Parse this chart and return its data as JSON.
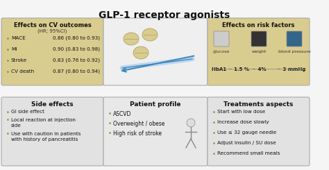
{
  "title": "GLP-1 receptor agonists",
  "title_fontsize": 10,
  "bg_color": "#f5f5f5",
  "bullet_color": "#6a9a2a",
  "panels": {
    "cv_outcomes": {
      "title": "Effects on CV outcomes",
      "subtitle": "(HR; 95%CI)",
      "rows": [
        [
          "MACE",
          "0.86 (0.80 to 0.93)"
        ],
        [
          "MI",
          "0.90 (0.83 to 0.98)"
        ],
        [
          "Stroke",
          "0.83 (0.76 to 0.92)"
        ],
        [
          "CV death",
          "0.87 (0.80 to 0.94)"
        ]
      ],
      "bg": "#d9cc8f"
    },
    "side_effects": {
      "title": "Side effects",
      "items": [
        "GI side effect",
        "Local reaction at injection\nside",
        "Use with caution in patients\nwith history of pancreatitis"
      ],
      "bg": "#e2e2e2"
    },
    "risk_factors": {
      "title": "Effects on risk factors",
      "labels": [
        "glucose",
        "weight",
        "blood pressure"
      ],
      "values": [
        "HbA1 ~ 1.5 %",
        "~ 4%",
        "~ 3 mmHg"
      ],
      "bg": "#d9cc8f"
    },
    "treatments": {
      "title": "Treatments aspects",
      "items": [
        "Start with low dose",
        "Increase dose slowly",
        "Use ≤ 32 gauge needle",
        "Adjust insulin / SU dose",
        "Recommend small meals"
      ],
      "bg": "#e2e2e2"
    },
    "patient_profile": {
      "title": "Patient profile",
      "items": [
        "ASCVD",
        "Overweight / obese",
        "High risk of stroke"
      ],
      "bg": "#e8e8e8"
    }
  }
}
